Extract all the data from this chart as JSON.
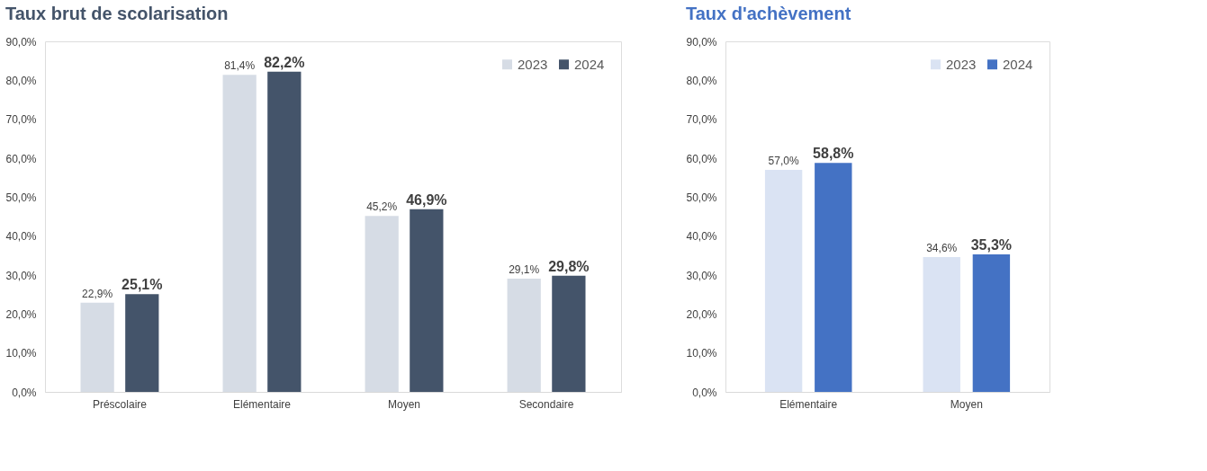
{
  "chart_data": [
    {
      "type": "bar",
      "title": "Taux brut de scolarisation",
      "categories": [
        "Préscolaire",
        "Elémentaire",
        "Moyen",
        "Secondaire"
      ],
      "series": [
        {
          "name": "2023",
          "color": "#d6dce5",
          "values": [
            22.9,
            81.4,
            45.2,
            29.1
          ],
          "value_labels": [
            "22,9%",
            "81,4%",
            "45,2%",
            "29,1%"
          ]
        },
        {
          "name": "2024",
          "color": "#44546a",
          "values": [
            25.1,
            82.2,
            46.9,
            29.8
          ],
          "value_labels": [
            "25,1%",
            "82,2%",
            "46,9%",
            "29,8%"
          ]
        }
      ],
      "ylim": [
        0,
        90
      ],
      "yticks": [
        {
          "value": 0,
          "label": "0,0%"
        },
        {
          "value": 10,
          "label": "10,0%"
        },
        {
          "value": 20,
          "label": "20,0%"
        },
        {
          "value": 30,
          "label": "30,0%"
        },
        {
          "value": 40,
          "label": "40,0%"
        },
        {
          "value": 50,
          "label": "50,0%"
        },
        {
          "value": 60,
          "label": "60,0%"
        },
        {
          "value": 70,
          "label": "70,0%"
        },
        {
          "value": 80,
          "label": "80,0%"
        },
        {
          "value": 90,
          "label": "90,0%"
        }
      ],
      "grid": false,
      "legend": "top right"
    },
    {
      "type": "bar",
      "title": "Taux d'achèvement",
      "categories": [
        "Elémentaire",
        "Moyen"
      ],
      "series": [
        {
          "name": "2023",
          "color": "#dae3f3",
          "values": [
            57.0,
            34.6
          ],
          "value_labels": [
            "57,0%",
            "34,6%"
          ]
        },
        {
          "name": "2024",
          "color": "#4472c4",
          "values": [
            58.8,
            35.3
          ],
          "value_labels": [
            "58,8%",
            "35,3%"
          ]
        }
      ],
      "ylim": [
        0,
        90
      ],
      "yticks": [
        {
          "value": 0,
          "label": "0,0%"
        },
        {
          "value": 10,
          "label": "10,0%"
        },
        {
          "value": 20,
          "label": "20,0%"
        },
        {
          "value": 30,
          "label": "30,0%"
        },
        {
          "value": 40,
          "label": "40,0%"
        },
        {
          "value": 50,
          "label": "50,0%"
        },
        {
          "value": 60,
          "label": "60,0%"
        },
        {
          "value": 70,
          "label": "70,0%"
        },
        {
          "value": 80,
          "label": "80,0%"
        },
        {
          "value": 90,
          "label": "90,0%"
        }
      ],
      "grid": false,
      "legend": "top right"
    }
  ]
}
